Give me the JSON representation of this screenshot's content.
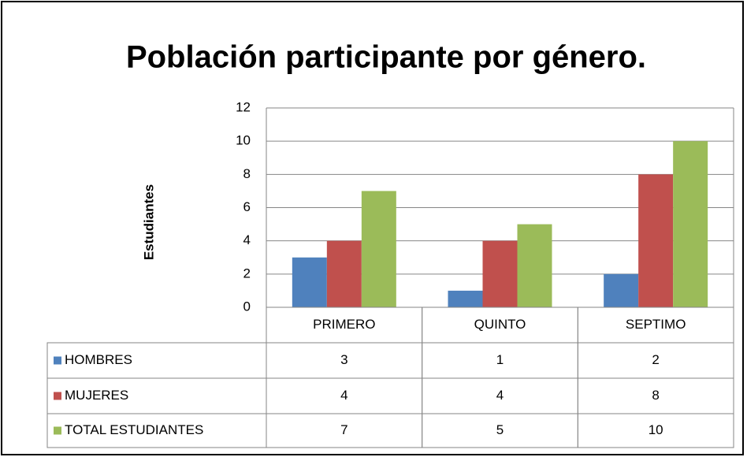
{
  "chart_data": {
    "type": "bar",
    "title": "Población participante por género.",
    "y_label": "Estudiantes",
    "categories": [
      "PRIMERO",
      "QUINTO",
      "SEPTIMO"
    ],
    "series": [
      {
        "name": "HOMBRES",
        "color": "#4f81bd",
        "values": [
          3,
          1,
          2
        ]
      },
      {
        "name": "MUJERES",
        "color": "#c0504d",
        "values": [
          4,
          4,
          8
        ]
      },
      {
        "name": "TOTAL ESTUDIANTES",
        "color": "#9bbb59",
        "values": [
          7,
          5,
          10
        ]
      }
    ],
    "ylim": [
      0,
      12
    ],
    "yticks": [
      0,
      2,
      4,
      6,
      8,
      10,
      12
    ],
    "grid": true,
    "data_table": true
  }
}
